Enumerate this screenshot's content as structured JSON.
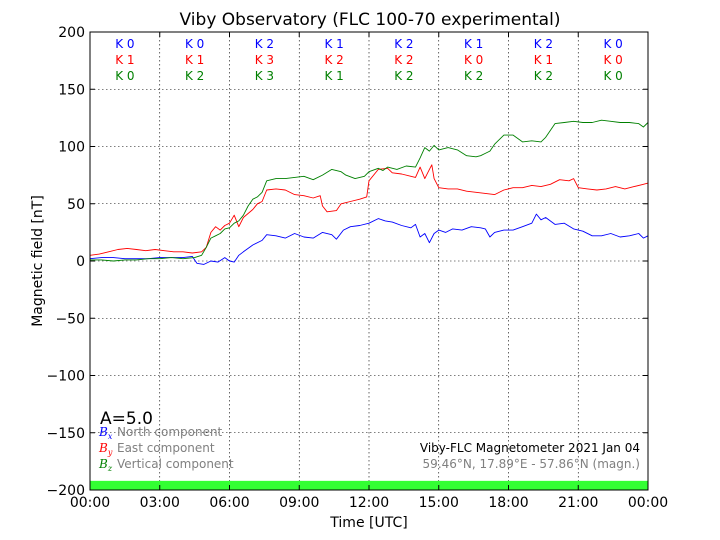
{
  "chart_data": {
    "type": "line",
    "title": "Viby Observatory (FLC 100-70 experimental)",
    "xlabel": "Time [UTC]",
    "ylabel": "Magnetic field [nT]",
    "xlim": [
      0,
      24
    ],
    "ylim": [
      -200,
      200
    ],
    "x_ticks": [
      {
        "value": 0,
        "label": "00:00"
      },
      {
        "value": 3,
        "label": "03:00"
      },
      {
        "value": 6,
        "label": "06:00"
      },
      {
        "value": 9,
        "label": "09:00"
      },
      {
        "value": 12,
        "label": "12:00"
      },
      {
        "value": 15,
        "label": "15:00"
      },
      {
        "value": 18,
        "label": "18:00"
      },
      {
        "value": 21,
        "label": "21:00"
      },
      {
        "value": 24,
        "label": "00:00"
      }
    ],
    "y_ticks": [
      {
        "value": 200,
        "label": "200"
      },
      {
        "value": 150,
        "label": "150"
      },
      {
        "value": 100,
        "label": "100"
      },
      {
        "value": 50,
        "label": "50"
      },
      {
        "value": 0,
        "label": "0"
      },
      {
        "value": -50,
        "label": "−50"
      },
      {
        "value": -100,
        "label": "−100"
      },
      {
        "value": -150,
        "label": "−150"
      },
      {
        "value": -200,
        "label": "−200"
      }
    ],
    "grid": true,
    "a_index": "A=5.0",
    "k_indices": {
      "interval_centers": [
        1.5,
        4.5,
        7.5,
        10.5,
        13.5,
        16.5,
        19.5,
        22.5
      ],
      "rows": [
        {
          "color": "#0000ff",
          "labels": [
            "K 0",
            "K 0",
            "K 2",
            "K 1",
            "K 2",
            "K 1",
            "K 2",
            "K 0"
          ]
        },
        {
          "color": "#ff0000",
          "labels": [
            "K 1",
            "K 1",
            "K 3",
            "K 2",
            "K 2",
            "K 0",
            "K 1",
            "K 0"
          ]
        },
        {
          "color": "#008000",
          "labels": [
            "K 0",
            "K 2",
            "K 3",
            "K 1",
            "K 2",
            "K 2",
            "K 2",
            "K 0"
          ]
        }
      ]
    },
    "activity_band": {
      "color": "#33ff33",
      "from": -200,
      "to": -192
    },
    "series": [
      {
        "symbol": "B",
        "sub": "x",
        "label": "North component",
        "color": "#0000ff",
        "points": [
          [
            0,
            2
          ],
          [
            0.5,
            3
          ],
          [
            1,
            3
          ],
          [
            1.5,
            2
          ],
          [
            2,
            2
          ],
          [
            2.5,
            2
          ],
          [
            3,
            3
          ],
          [
            3.5,
            3
          ],
          [
            4,
            3
          ],
          [
            4.4,
            4
          ],
          [
            4.6,
            -2
          ],
          [
            4.9,
            -3
          ],
          [
            5.2,
            0
          ],
          [
            5.5,
            -1
          ],
          [
            5.8,
            3
          ],
          [
            6.0,
            0
          ],
          [
            6.2,
            -1
          ],
          [
            6.4,
            5
          ],
          [
            6.6,
            8
          ],
          [
            7.0,
            14
          ],
          [
            7.4,
            18
          ],
          [
            7.6,
            23
          ],
          [
            8.0,
            22
          ],
          [
            8.4,
            20
          ],
          [
            8.8,
            24
          ],
          [
            9.2,
            21
          ],
          [
            9.6,
            20
          ],
          [
            10.0,
            25
          ],
          [
            10.4,
            23
          ],
          [
            10.6,
            19
          ],
          [
            10.9,
            27
          ],
          [
            11.2,
            30
          ],
          [
            11.6,
            31
          ],
          [
            12.0,
            33
          ],
          [
            12.4,
            37
          ],
          [
            12.7,
            35
          ],
          [
            13.0,
            34
          ],
          [
            13.4,
            31
          ],
          [
            13.8,
            29
          ],
          [
            14.0,
            32
          ],
          [
            14.2,
            21
          ],
          [
            14.4,
            24
          ],
          [
            14.6,
            16
          ],
          [
            14.8,
            24
          ],
          [
            15.0,
            27
          ],
          [
            15.3,
            25
          ],
          [
            15.6,
            28
          ],
          [
            16.0,
            27
          ],
          [
            16.4,
            30
          ],
          [
            16.8,
            29
          ],
          [
            17.0,
            28
          ],
          [
            17.2,
            21
          ],
          [
            17.4,
            25
          ],
          [
            17.8,
            27
          ],
          [
            18.2,
            27
          ],
          [
            18.6,
            30
          ],
          [
            19.0,
            33
          ],
          [
            19.2,
            41
          ],
          [
            19.4,
            36
          ],
          [
            19.6,
            38
          ],
          [
            20.0,
            32
          ],
          [
            20.4,
            33
          ],
          [
            20.8,
            28
          ],
          [
            21.2,
            26
          ],
          [
            21.6,
            22
          ],
          [
            22.0,
            22
          ],
          [
            22.4,
            24
          ],
          [
            22.8,
            21
          ],
          [
            23.2,
            22
          ],
          [
            23.6,
            24
          ],
          [
            23.8,
            20
          ],
          [
            24,
            22
          ]
        ]
      },
      {
        "symbol": "B",
        "sub": "y",
        "label": "East component",
        "color": "#ff0000",
        "points": [
          [
            0,
            5
          ],
          [
            0.4,
            6
          ],
          [
            0.8,
            8
          ],
          [
            1.2,
            10
          ],
          [
            1.6,
            11
          ],
          [
            2.0,
            10
          ],
          [
            2.4,
            9
          ],
          [
            2.8,
            10
          ],
          [
            3.2,
            9
          ],
          [
            3.6,
            8
          ],
          [
            4.0,
            8
          ],
          [
            4.4,
            7
          ],
          [
            4.8,
            8
          ],
          [
            5.0,
            12
          ],
          [
            5.2,
            25
          ],
          [
            5.4,
            30
          ],
          [
            5.6,
            27
          ],
          [
            5.8,
            31
          ],
          [
            6.0,
            33
          ],
          [
            6.2,
            40
          ],
          [
            6.4,
            30
          ],
          [
            6.6,
            38
          ],
          [
            7.0,
            45
          ],
          [
            7.2,
            50
          ],
          [
            7.4,
            52
          ],
          [
            7.6,
            62
          ],
          [
            8.0,
            63
          ],
          [
            8.4,
            62
          ],
          [
            8.8,
            58
          ],
          [
            9.2,
            57
          ],
          [
            9.6,
            55
          ],
          [
            9.9,
            57
          ],
          [
            10.0,
            48
          ],
          [
            10.2,
            43
          ],
          [
            10.6,
            44
          ],
          [
            10.8,
            50
          ],
          [
            11.2,
            52
          ],
          [
            11.6,
            54
          ],
          [
            11.9,
            56
          ],
          [
            12.0,
            70
          ],
          [
            12.4,
            80
          ],
          [
            12.8,
            81
          ],
          [
            13.0,
            77
          ],
          [
            13.4,
            76
          ],
          [
            13.8,
            74
          ],
          [
            14.0,
            73
          ],
          [
            14.2,
            82
          ],
          [
            14.4,
            72
          ],
          [
            14.6,
            80
          ],
          [
            14.7,
            84
          ],
          [
            14.8,
            72
          ],
          [
            15.0,
            64
          ],
          [
            15.4,
            63
          ],
          [
            15.8,
            63
          ],
          [
            16.2,
            61
          ],
          [
            16.6,
            60
          ],
          [
            17.0,
            59
          ],
          [
            17.4,
            58
          ],
          [
            17.8,
            62
          ],
          [
            18.2,
            64
          ],
          [
            18.6,
            64
          ],
          [
            19.0,
            66
          ],
          [
            19.4,
            65
          ],
          [
            19.8,
            67
          ],
          [
            20.2,
            71
          ],
          [
            20.6,
            70
          ],
          [
            20.8,
            72
          ],
          [
            21.0,
            64
          ],
          [
            21.4,
            63
          ],
          [
            21.8,
            62
          ],
          [
            22.2,
            63
          ],
          [
            22.6,
            65
          ],
          [
            23.0,
            63
          ],
          [
            23.4,
            65
          ],
          [
            23.8,
            67
          ],
          [
            24,
            68
          ]
        ]
      },
      {
        "symbol": "B",
        "sub": "z",
        "label": "Vertical component",
        "color": "#008000",
        "points": [
          [
            0,
            1
          ],
          [
            0.5,
            1
          ],
          [
            1,
            0
          ],
          [
            1.5,
            1
          ],
          [
            2,
            1
          ],
          [
            2.5,
            2
          ],
          [
            3,
            2
          ],
          [
            3.5,
            3
          ],
          [
            4,
            2
          ],
          [
            4.5,
            3
          ],
          [
            4.8,
            5
          ],
          [
            5.0,
            12
          ],
          [
            5.2,
            20
          ],
          [
            5.4,
            22
          ],
          [
            5.6,
            24
          ],
          [
            5.8,
            28
          ],
          [
            6.0,
            29
          ],
          [
            6.2,
            33
          ],
          [
            6.4,
            35
          ],
          [
            6.6,
            40
          ],
          [
            6.8,
            48
          ],
          [
            7.0,
            54
          ],
          [
            7.2,
            56
          ],
          [
            7.4,
            60
          ],
          [
            7.6,
            70
          ],
          [
            8.0,
            72
          ],
          [
            8.4,
            72
          ],
          [
            8.8,
            73
          ],
          [
            9.2,
            74
          ],
          [
            9.6,
            71
          ],
          [
            10.0,
            75
          ],
          [
            10.4,
            80
          ],
          [
            10.8,
            78
          ],
          [
            11.0,
            75
          ],
          [
            11.4,
            72
          ],
          [
            11.8,
            74
          ],
          [
            12.0,
            78
          ],
          [
            12.4,
            81
          ],
          [
            12.6,
            79
          ],
          [
            12.8,
            82
          ],
          [
            13.2,
            80
          ],
          [
            13.6,
            83
          ],
          [
            14.0,
            82
          ],
          [
            14.2,
            90
          ],
          [
            14.4,
            99
          ],
          [
            14.6,
            96
          ],
          [
            14.8,
            101
          ],
          [
            15.0,
            97
          ],
          [
            15.4,
            99
          ],
          [
            15.8,
            97
          ],
          [
            16.2,
            92
          ],
          [
            16.6,
            91
          ],
          [
            16.8,
            92
          ],
          [
            17.0,
            94
          ],
          [
            17.2,
            96
          ],
          [
            17.4,
            102
          ],
          [
            17.8,
            110
          ],
          [
            18.2,
            110
          ],
          [
            18.6,
            104
          ],
          [
            19.0,
            105
          ],
          [
            19.4,
            104
          ],
          [
            19.6,
            108
          ],
          [
            20.0,
            120
          ],
          [
            20.4,
            121
          ],
          [
            20.8,
            122
          ],
          [
            21.2,
            121
          ],
          [
            21.6,
            121
          ],
          [
            22.0,
            123
          ],
          [
            22.4,
            122
          ],
          [
            22.8,
            121
          ],
          [
            23.2,
            121
          ],
          [
            23.6,
            120
          ],
          [
            23.8,
            117
          ],
          [
            24,
            121
          ]
        ]
      }
    ],
    "info_line1": "Viby-FLC Magnetometer 2021 Jan 04",
    "info_line2": "59.46°N, 17.89°E - 57.86°N (magn.)"
  }
}
